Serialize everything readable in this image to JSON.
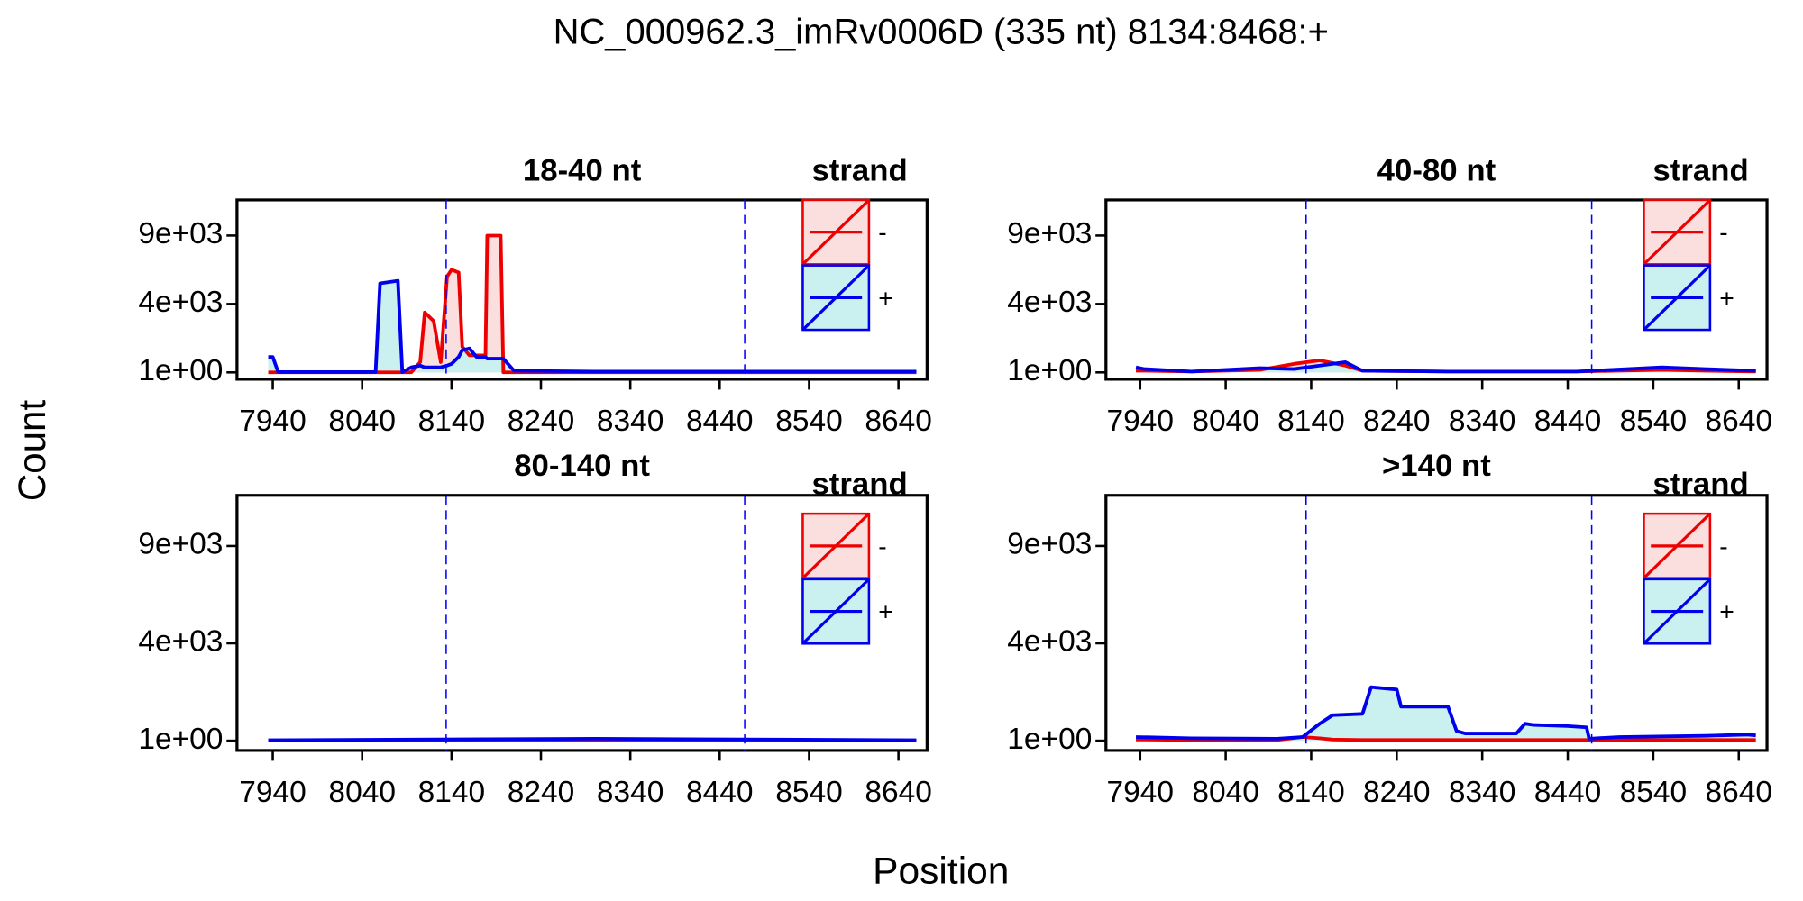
{
  "title": "NC_000962.3_imRv0006D (335 nt) 8134:8468:+",
  "x_label": "Position",
  "y_label": "Count",
  "chart_data": [
    {
      "type": "area",
      "title": "18-40 nt",
      "legend_title": "strand",
      "x": [
        7935,
        7940,
        7946,
        8050,
        8055,
        8060,
        8080,
        8085,
        8095,
        8105,
        8110,
        8120,
        8128,
        8135,
        8140,
        8148,
        8152,
        8160,
        8168,
        8178,
        8180,
        8195,
        8198,
        8210,
        8300,
        8400,
        8500,
        8600,
        8660
      ],
      "series": [
        {
          "name": "-",
          "color": "#ee0000",
          "fill": "#fbdede",
          "values": [
            0,
            0,
            0,
            0,
            0,
            0,
            0,
            0,
            0,
            600,
            3500,
            3000,
            600,
            6000,
            6500,
            6300,
            1500,
            1000,
            1000,
            1000,
            9000,
            9000,
            0,
            0,
            0,
            0,
            0,
            0,
            0
          ]
        },
        {
          "name": "+",
          "color": "#0000ee",
          "fill": "#cbf0f0",
          "values": [
            900,
            900,
            20,
            20,
            20,
            5500,
            5700,
            20,
            300,
            400,
            300,
            300,
            300,
            400,
            500,
            900,
            1300,
            1400,
            900,
            900,
            800,
            800,
            800,
            100,
            50,
            50,
            50,
            50,
            50
          ]
        }
      ],
      "vlines": [
        8134,
        8468
      ],
      "xlim": [
        7900,
        8672
      ],
      "xticks": [
        7940,
        8040,
        8140,
        8240,
        8340,
        8440,
        8540,
        8640
      ],
      "ylim": [
        -400,
        11600
      ],
      "yticks": [
        {
          "value": 1,
          "label": "1e+00"
        },
        {
          "value": 4000,
          "label": "4e+03"
        },
        {
          "value": 9000,
          "label": "9e+03"
        }
      ]
    },
    {
      "type": "area",
      "title": "40-80 nt",
      "legend_title": "strand",
      "x": [
        7935,
        7945,
        8000,
        8080,
        8120,
        8150,
        8180,
        8200,
        8300,
        8450,
        8550,
        8600,
        8660
      ],
      "series": [
        {
          "name": "-",
          "color": "#ee0000",
          "fill": "#fbdede",
          "values": [
            100,
            100,
            50,
            150,
            500,
            700,
            400,
            100,
            50,
            50,
            150,
            100,
            50
          ]
        },
        {
          "name": "+",
          "color": "#0000ee",
          "fill": "#cbf0f0",
          "values": [
            300,
            200,
            50,
            250,
            200,
            400,
            600,
            100,
            50,
            50,
            300,
            200,
            100
          ]
        }
      ],
      "vlines": [
        8134,
        8468
      ],
      "xlim": [
        7900,
        8673
      ],
      "xticks": [
        7940,
        8040,
        8140,
        8240,
        8340,
        8440,
        8540,
        8640
      ],
      "ylim": [
        -400,
        11600
      ],
      "yticks": [
        {
          "value": 1,
          "label": "1e+00"
        },
        {
          "value": 4000,
          "label": "4e+03"
        },
        {
          "value": 9000,
          "label": "9e+03"
        }
      ]
    },
    {
      "type": "area",
      "title": "80-140 nt",
      "legend_title": "strand",
      "x": [
        7935,
        8300,
        8660
      ],
      "series": [
        {
          "name": "-",
          "color": "#ee0000",
          "fill": "#fbdede",
          "values": [
            10,
            10,
            10
          ]
        },
        {
          "name": "+",
          "color": "#0000ee",
          "fill": "#cbf0f0",
          "values": [
            20,
            80,
            20
          ]
        }
      ],
      "vlines": [
        8134,
        8468
      ],
      "xlim": [
        7900,
        8672
      ],
      "xticks": [
        7940,
        8040,
        8140,
        8240,
        8340,
        8440,
        8540,
        8640
      ],
      "ylim": [
        -400,
        11600
      ],
      "yticks": [
        {
          "value": 1,
          "label": "1e+00"
        },
        {
          "value": 4000,
          "label": "4e+03"
        },
        {
          "value": 9000,
          "label": "9e+03"
        }
      ]
    },
    {
      "type": "area",
      "title": ">140 nt",
      "legend_title": "strand",
      "x": [
        7935,
        8000,
        8100,
        8130,
        8150,
        8165,
        8200,
        8210,
        8240,
        8245,
        8300,
        8310,
        8320,
        8380,
        8390,
        8400,
        8440,
        8462,
        8465,
        8500,
        8600,
        8650,
        8660
      ],
      "series": [
        {
          "name": "-",
          "color": "#ee0000",
          "fill": "#fbdede",
          "values": [
            50,
            30,
            30,
            150,
            100,
            50,
            30,
            30,
            30,
            30,
            30,
            30,
            30,
            30,
            30,
            30,
            30,
            30,
            30,
            30,
            30,
            30,
            30
          ]
        },
        {
          "name": "+",
          "color": "#0000ee",
          "fill": "#cbf0f0",
          "values": [
            150,
            100,
            80,
            150,
            700,
            1050,
            1100,
            2200,
            2100,
            1400,
            1400,
            400,
            300,
            300,
            700,
            650,
            600,
            550,
            80,
            150,
            200,
            250,
            220
          ]
        }
      ],
      "vlines": [
        8134,
        8468
      ],
      "xlim": [
        7900,
        8673
      ],
      "xticks": [
        7940,
        8040,
        8140,
        8240,
        8340,
        8440,
        8540,
        8640
      ],
      "ylim": [
        -400,
        11600
      ],
      "yticks": [
        {
          "value": 1,
          "label": "1e+00"
        },
        {
          "value": 4000,
          "label": "4e+03"
        },
        {
          "value": 9000,
          "label": "9e+03"
        }
      ]
    }
  ]
}
